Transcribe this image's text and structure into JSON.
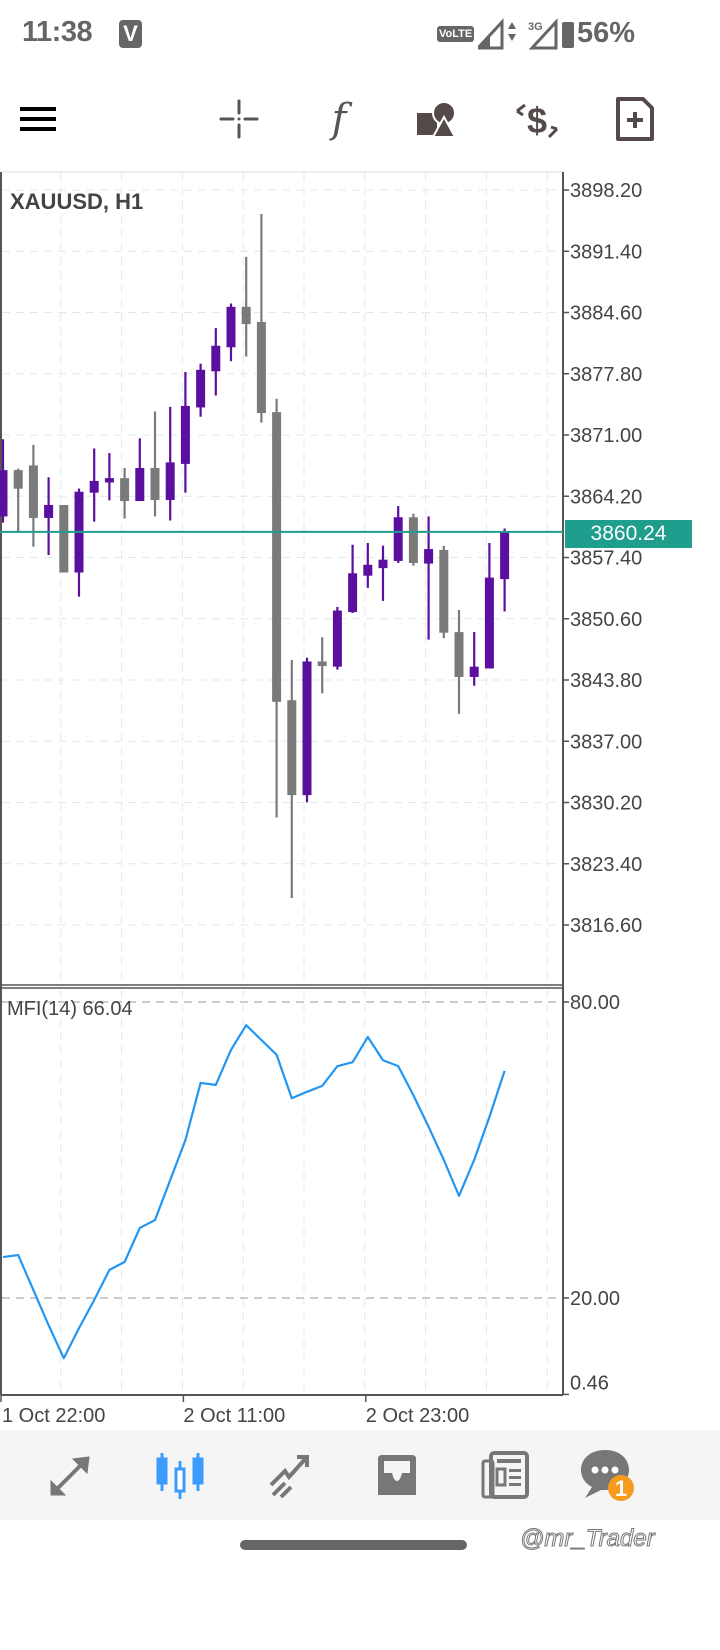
{
  "status_bar": {
    "time": "11:38",
    "app_badge": "V",
    "volte": "VoLTE",
    "network": "3G",
    "battery": "56%"
  },
  "toolbar": {
    "icons": [
      "menu-icon",
      "crosshair-icon",
      "indicators-icon",
      "objects-icon",
      "trade-icon",
      "new-order-icon"
    ],
    "indicator_glyph": "f"
  },
  "chart": {
    "symbol_label": "XAUUSD, H1",
    "current_price": "3860.24",
    "price_axis_labels": [
      "3898.20",
      "3891.40",
      "3884.60",
      "3877.80",
      "3871.00",
      "3864.20",
      "3857.40",
      "3850.60",
      "3843.80",
      "3837.00",
      "3830.20",
      "3823.40",
      "3816.60"
    ],
    "indicator_label": "MFI(14) 66.04",
    "indicator_axis_labels": [
      "80.00",
      "20.00",
      "0.46"
    ],
    "time_axis_labels": [
      "1 Oct 22:00",
      "2 Oct 11:00",
      "2 Oct 23:00"
    ],
    "colors": {
      "bull": "#5b0f9e",
      "bear": "#7a7a7a",
      "price_line": "#1f9e8e",
      "mfi_line": "#2196f3"
    }
  },
  "chart_data": {
    "type": "candlestick",
    "symbol": "XAUUSD",
    "timeframe": "H1",
    "ylim": [
      3812,
      3900
    ],
    "candles_ohlc": [
      [
        3861.96,
        3870.53,
        3861.27,
        3867.1
      ],
      [
        3867.1,
        3867.27,
        3860.25,
        3865.04
      ],
      [
        3867.62,
        3869.91,
        3858.6,
        3861.79
      ],
      [
        3861.79,
        3866.31,
        3857.68,
        3863.23
      ],
      [
        3863.23,
        3863.23,
        3855.73,
        3855.73
      ],
      [
        3855.73,
        3865.05,
        3853.05,
        3864.7
      ],
      [
        3864.6,
        3869.5,
        3861.38,
        3865.9
      ],
      [
        3865.73,
        3868.99,
        3863.74,
        3866.21
      ],
      [
        3866.21,
        3867.34,
        3861.72,
        3863.67
      ],
      [
        3863.67,
        3870.63,
        3863.67,
        3867.34
      ],
      [
        3867.34,
        3873.61,
        3861.96,
        3863.78
      ],
      [
        3863.78,
        3874.12,
        3861.51,
        3867.96
      ],
      [
        3867.79,
        3878.0,
        3864.6,
        3874.23
      ],
      [
        3874.06,
        3878.92,
        3873.03,
        3878.24
      ],
      [
        3878.07,
        3882.86,
        3875.39,
        3880.91
      ],
      [
        3880.74,
        3885.6,
        3879.2,
        3885.23
      ],
      [
        3885.23,
        3890.78,
        3879.71,
        3883.31
      ],
      [
        3883.55,
        3895.54,
        3872.37,
        3873.44
      ],
      [
        3873.54,
        3875.02,
        3828.53,
        3841.38
      ],
      [
        3841.55,
        3846.02,
        3819.6,
        3831.02
      ],
      [
        3831.02,
        3846.29,
        3830.21,
        3845.86
      ],
      [
        3845.86,
        3848.55,
        3842.32,
        3845.35
      ],
      [
        3845.28,
        3851.91,
        3844.95,
        3851.51
      ],
      [
        3851.34,
        3858.81,
        3851.24,
        3855.65
      ],
      [
        3855.38,
        3859.01,
        3854.03,
        3856.59
      ],
      [
        3856.22,
        3858.71,
        3852.58,
        3857.16
      ],
      [
        3857.02,
        3863.11,
        3856.79,
        3861.87
      ],
      [
        3861.87,
        3862.27,
        3856.49,
        3856.79
      ],
      [
        3856.72,
        3861.97,
        3848.28,
        3858.34
      ],
      [
        3858.24,
        3858.71,
        3848.45,
        3849.05
      ],
      [
        3849.12,
        3851.57,
        3840.04,
        3844.14
      ],
      [
        3844.14,
        3849.12,
        3843.17,
        3845.28
      ],
      [
        3845.08,
        3859.01,
        3845.08,
        3855.17
      ],
      [
        3855.0,
        3860.62,
        3851.41,
        3860.24
      ]
    ],
    "current_price": 3860.24,
    "time_ticks": [
      {
        "index": 0,
        "label": "1 Oct 22:00"
      },
      {
        "index": 12,
        "label": "2 Oct 11:00"
      },
      {
        "index": 24,
        "label": "2 Oct 23:00"
      }
    ],
    "indicator": {
      "name": "MFI(14)",
      "last": 66.04,
      "levels": [
        80,
        20
      ],
      "ylim": [
        0.46,
        80
      ],
      "values": [
        28.3,
        28.7,
        21.6,
        14.5,
        7.8,
        13.9,
        19.6,
        25.7,
        27.3,
        34.2,
        35.8,
        43.9,
        52.0,
        63.6,
        63.2,
        70.3,
        75.3,
        72.3,
        69.3,
        60.5,
        61.8,
        63.0,
        67.0,
        67.8,
        72.9,
        68.2,
        67.0,
        61.1,
        54.7,
        48.0,
        40.7,
        48.0,
        56.7,
        66.04
      ]
    }
  },
  "bottom_nav": {
    "items": [
      "quotes-icon",
      "chart-icon",
      "trade-icon",
      "history-icon",
      "news-icon",
      "messages-icon"
    ],
    "active": "chart-icon",
    "messages_badge": "1",
    "accent": "#3d9bff"
  },
  "watermark": "@mr_Trader"
}
